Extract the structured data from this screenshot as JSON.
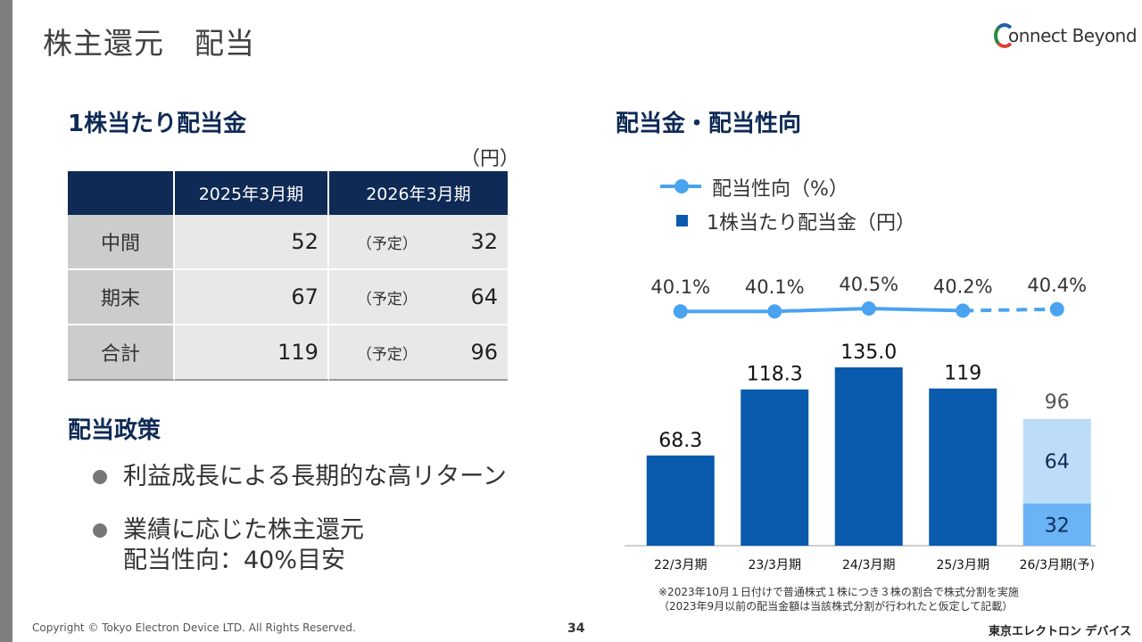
{
  "header": {
    "title": "株主還元　配当",
    "logo_text": "onnect Beyond"
  },
  "dividend_table": {
    "section_title": "1株当たり配当金",
    "unit": "（円）",
    "columns": [
      "",
      "2025年3月期",
      "2026年3月期"
    ],
    "rows": [
      {
        "label": "中間",
        "fy2025": "52",
        "note": "（予定）",
        "fy2026": "32"
      },
      {
        "label": "期末",
        "fy2025": "67",
        "note": "（予定）",
        "fy2026": "64"
      },
      {
        "label": "合計",
        "fy2025": "119",
        "note": "（予定）",
        "fy2026": "96"
      }
    ]
  },
  "policy": {
    "section_title": "配当政策",
    "bullets": [
      [
        "利益成長による長期的な高リターン"
      ],
      [
        "業績に応じた株主還元",
        "配当性向：40%目安"
      ]
    ]
  },
  "chart_section": {
    "title": "配当金・配当性向",
    "legend_payout": "配当性向（%）",
    "legend_dividend": "1株当たり配当金（円）"
  },
  "colors": {
    "navy": "#0e2a55",
    "bar_blue": "#0a5aad",
    "bar_light": "#bcdcf7",
    "bar_mid": "#6ab3f5",
    "line_blue": "#4aa3f0"
  },
  "chart_data": {
    "type": "bar",
    "categories": [
      "22/3月期",
      "23/3月期",
      "24/3月期",
      "25/3月期",
      "26/3月期(予)"
    ],
    "series": [
      {
        "values": [
          68.3,
          118.3,
          135.0,
          119,
          32
        ]
      },
      {
        "values": [
          null,
          null,
          null,
          null,
          64
        ]
      }
    ],
    "bar_labels": [
      "68.3",
      "118.3",
      "135.0",
      "119",
      "96"
    ],
    "segment_labels": {
      "lower": "32",
      "upper": "64"
    },
    "line": {
      "values": [
        40.1,
        40.1,
        40.5,
        40.2,
        40.4
      ],
      "labels": [
        "40.1%",
        "40.1%",
        "40.5%",
        "40.2%",
        "40.4%"
      ],
      "forecast_from_index": 3
    },
    "ylim": [
      0,
      135
    ]
  },
  "footnote": [
    "※2023年10月１日付けで普通株式１株につき３株の割合で株式分割を実施",
    "（2023年9月以前の配当金額は当該株式分割が行われたと仮定して記載）"
  ],
  "footer": {
    "copyright": "Copyright © Tokyo Electron Device LTD. All Rights Reserved.",
    "page": "34",
    "brand": "東京エレクトロン デバイス"
  }
}
